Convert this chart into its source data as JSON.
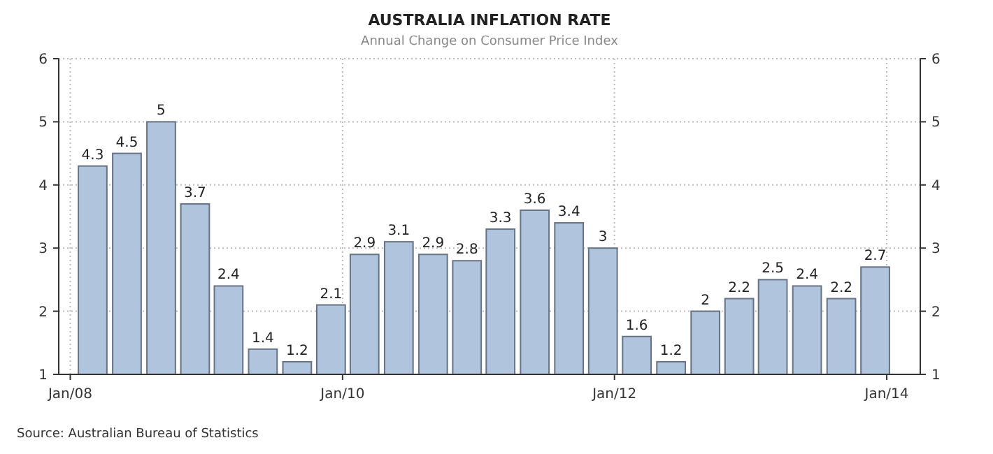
{
  "chart_data": {
    "type": "bar",
    "title": "AUSTRALIA INFLATION RATE",
    "subtitle": "Annual Change on Consumer Price Index",
    "x": [
      "2008-03",
      "2008-06",
      "2008-09",
      "2008-12",
      "2009-03",
      "2009-06",
      "2009-09",
      "2009-12",
      "2010-03",
      "2010-06",
      "2010-09",
      "2010-12",
      "2011-03",
      "2011-06",
      "2011-09",
      "2011-12",
      "2012-03",
      "2012-06",
      "2012-09",
      "2012-12",
      "2013-03",
      "2013-06",
      "2013-09",
      "2013-12"
    ],
    "values": [
      4.3,
      4.5,
      5,
      3.7,
      2.4,
      1.4,
      1.2,
      2.1,
      2.9,
      3.1,
      2.9,
      2.8,
      3.3,
      3.6,
      3.4,
      3,
      1.6,
      1.2,
      2,
      2.2,
      2.5,
      2.4,
      2.2,
      2.7
    ],
    "color": "#b0c4de",
    "data_labels": true,
    "xlim": [
      "2007-12",
      "2014-04"
    ],
    "xticks": [
      {
        "value": "2008-01",
        "label": "Jan/08"
      },
      {
        "value": "2010-01",
        "label": "Jan/10"
      },
      {
        "value": "2012-01",
        "label": "Jan/12"
      },
      {
        "value": "2014-01",
        "label": "Jan/14"
      }
    ],
    "ylim": [
      1,
      6
    ],
    "yticks": [
      1,
      2,
      3,
      4,
      5,
      6
    ],
    "y2lim": [
      1,
      6
    ],
    "y2ticks": [
      1,
      2,
      3,
      4,
      5,
      6
    ],
    "grid": true,
    "annotations": [
      "Source: Australian Bureau of Statistics"
    ]
  }
}
